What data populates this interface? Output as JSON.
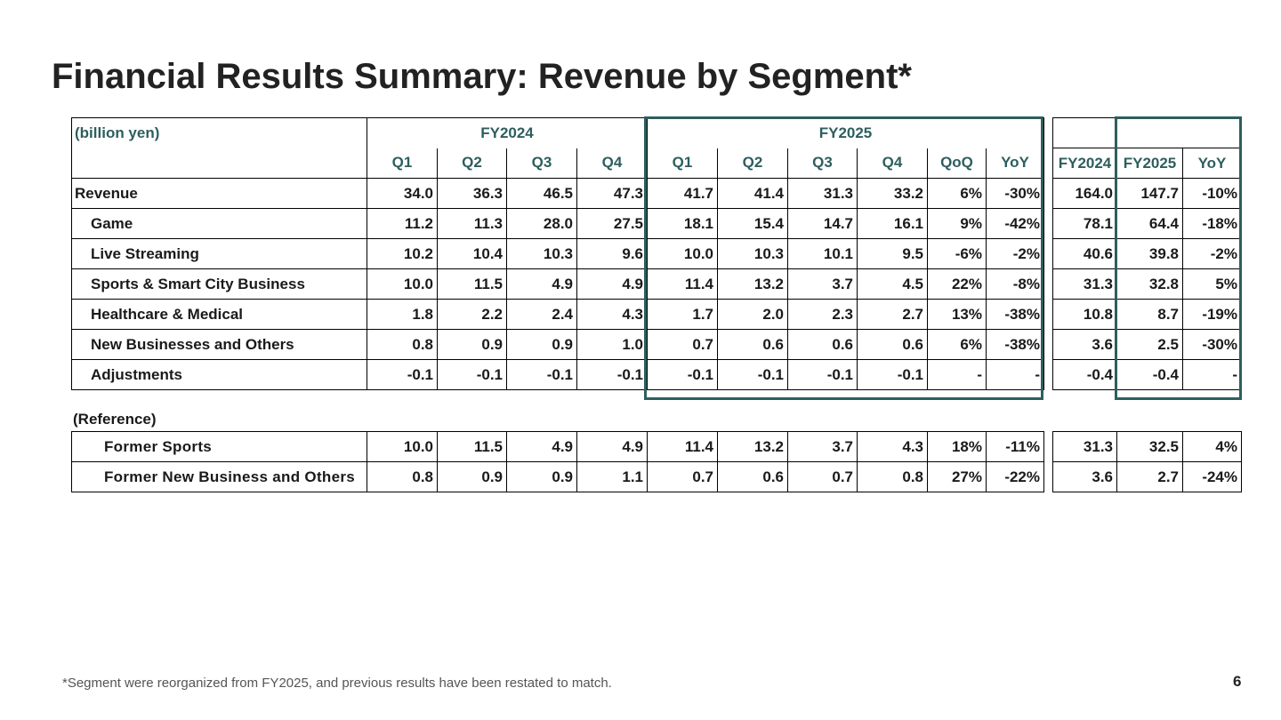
{
  "title": "Financial Results Summary: Revenue by Segment*",
  "unit_label": "(billion yen)",
  "fy_headers": {
    "left": "FY2024",
    "right": "FY2025"
  },
  "quarter_headers": [
    "Q1",
    "Q2",
    "Q3",
    "Q4",
    "Q1",
    "Q2",
    "Q3",
    "Q4",
    "QoQ",
    "YoY"
  ],
  "annual_headers": [
    "FY2024",
    "FY2025",
    "YoY"
  ],
  "rows": [
    {
      "label": "Revenue",
      "level": 0,
      "values": [
        "34.0",
        "36.3",
        "46.5",
        "47.3",
        "41.7",
        "41.4",
        "31.3",
        "33.2",
        "6%",
        "-30%"
      ],
      "annual": [
        "164.0",
        "147.7",
        "-10%"
      ]
    },
    {
      "label": "Game",
      "level": 1,
      "values": [
        "11.2",
        "11.3",
        "28.0",
        "27.5",
        "18.1",
        "15.4",
        "14.7",
        "16.1",
        "9%",
        "-42%"
      ],
      "annual": [
        "78.1",
        "64.4",
        "-18%"
      ]
    },
    {
      "label": "Live Streaming",
      "level": 1,
      "values": [
        "10.2",
        "10.4",
        "10.3",
        "9.6",
        "10.0",
        "10.3",
        "10.1",
        "9.5",
        "-6%",
        "-2%"
      ],
      "annual": [
        "40.6",
        "39.8",
        "-2%"
      ]
    },
    {
      "label": "Sports & Smart City Business",
      "level": 1,
      "values": [
        "10.0",
        "11.5",
        "4.9",
        "4.9",
        "11.4",
        "13.2",
        "3.7",
        "4.5",
        "22%",
        "-8%"
      ],
      "annual": [
        "31.3",
        "32.8",
        "5%"
      ]
    },
    {
      "label": "Healthcare & Medical",
      "level": 1,
      "values": [
        "1.8",
        "2.2",
        "2.4",
        "4.3",
        "1.7",
        "2.0",
        "2.3",
        "2.7",
        "13%",
        "-38%"
      ],
      "annual": [
        "10.8",
        "8.7",
        "-19%"
      ]
    },
    {
      "label": "New Businesses and Others",
      "level": 1,
      "values": [
        "0.8",
        "0.9",
        "0.9",
        "1.0",
        "0.7",
        "0.6",
        "0.6",
        "0.6",
        "6%",
        "-38%"
      ],
      "annual": [
        "3.6",
        "2.5",
        "-30%"
      ]
    },
    {
      "label": "Adjustments",
      "level": 1,
      "values": [
        "-0.1",
        "-0.1",
        "-0.1",
        "-0.1",
        "-0.1",
        "-0.1",
        "-0.1",
        "-0.1",
        "-",
        "-"
      ],
      "annual": [
        "-0.4",
        "-0.4",
        "-"
      ]
    }
  ],
  "reference_label": "(Reference)",
  "reference_rows": [
    {
      "label": "Former Sports",
      "level": 2,
      "values": [
        "10.0",
        "11.5",
        "4.9",
        "4.9",
        "11.4",
        "13.2",
        "3.7",
        "4.3",
        "18%",
        "-11%"
      ],
      "annual": [
        "31.3",
        "32.5",
        "4%"
      ]
    },
    {
      "label": "Former New Business and Others",
      "level": 2,
      "values": [
        "0.8",
        "0.9",
        "0.9",
        "1.1",
        "0.7",
        "0.6",
        "0.7",
        "0.8",
        "27%",
        "-22%"
      ],
      "annual": [
        "3.6",
        "2.7",
        "-24%"
      ]
    }
  ],
  "footnote": "*Segment were reorganized from FY2025, and previous results have been restated to match.",
  "page_number": "6",
  "colors": {
    "accent": "#2e5e5e",
    "text": "#1a1a1a",
    "title": "#222222",
    "footnote": "#555555"
  }
}
